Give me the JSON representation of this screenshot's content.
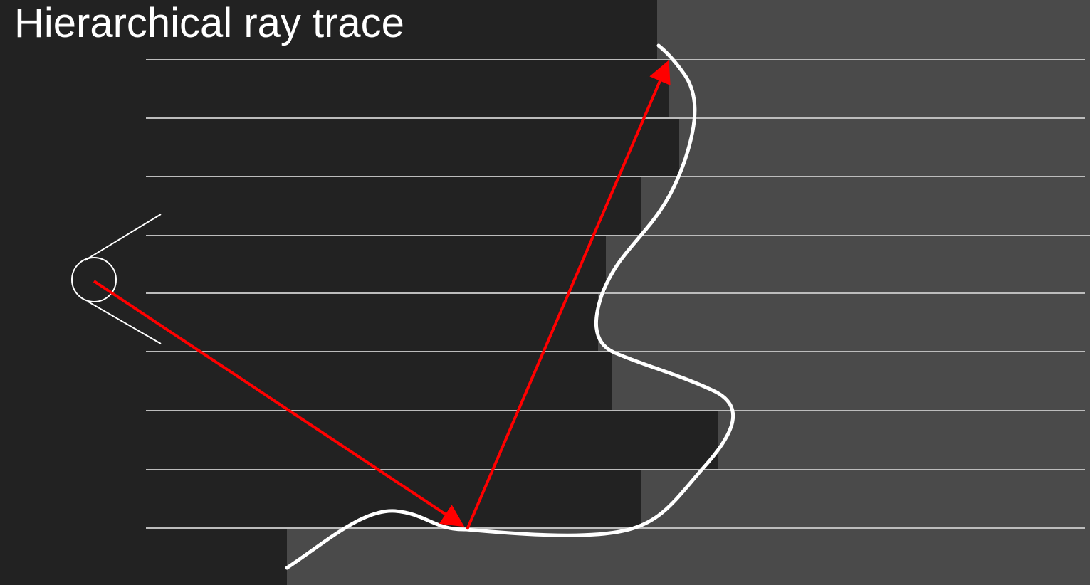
{
  "slide": {
    "title": "Hierarchical ray trace"
  },
  "colors": {
    "background": "#222222",
    "depth_region": "#4a4a4a",
    "grid_line": "#bdbdbd",
    "surface_curve": "#ffffff",
    "ray": "#ff0000",
    "title_text": "#ffffff",
    "camera": "#ffffff"
  },
  "icons": {
    "camera": "camera-eye-icon",
    "ray_arrowhead": "arrowhead-icon"
  }
}
